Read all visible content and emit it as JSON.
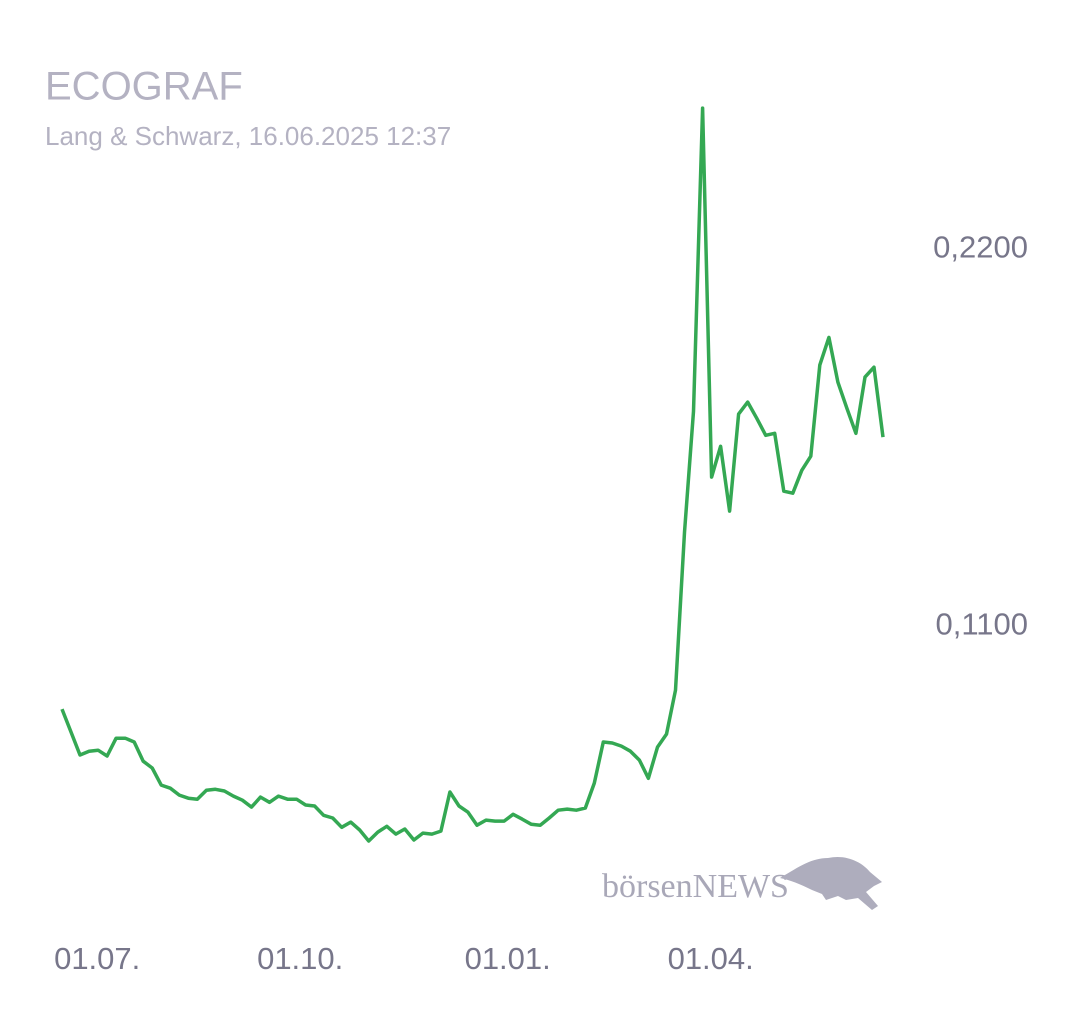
{
  "chart_data": {
    "type": "line",
    "title": "ECOGRAF",
    "subtitle": "Lang & Schwarz, 16.06.2025 12:37",
    "watermark": "börsenNEWS",
    "color": "#34a853",
    "xlim": [
      0,
      91
    ],
    "xticks": [
      {
        "value": 3.9,
        "label": "01.07."
      },
      {
        "value": 26.4,
        "label": "01.10."
      },
      {
        "value": 49.4,
        "label": "01.01."
      },
      {
        "value": 71.9,
        "label": "01.04."
      }
    ],
    "ylim": [
      0.04,
      0.27
    ],
    "yticks": [
      {
        "value": 0.11,
        "label": "0,1100"
      },
      {
        "value": 0.22,
        "label": "0,2200"
      }
    ],
    "values": [
      0.0858,
      0.0791,
      0.0724,
      0.0735,
      0.0738,
      0.0721,
      0.0773,
      0.0773,
      0.0762,
      0.0706,
      0.0686,
      0.0636,
      0.0627,
      0.0607,
      0.0598,
      0.0595,
      0.0621,
      0.0624,
      0.0619,
      0.0604,
      0.0592,
      0.0572,
      0.0601,
      0.0586,
      0.0604,
      0.0595,
      0.0595,
      0.0578,
      0.0575,
      0.0548,
      0.054,
      0.0513,
      0.0528,
      0.0505,
      0.0473,
      0.0499,
      0.0516,
      0.0493,
      0.0508,
      0.0476,
      0.0496,
      0.0493,
      0.0502,
      0.0616,
      0.0575,
      0.0557,
      0.0519,
      0.0534,
      0.0531,
      0.0531,
      0.0551,
      0.0537,
      0.0522,
      0.0519,
      0.054,
      0.0563,
      0.0566,
      0.0563,
      0.0569,
      0.0642,
      0.0762,
      0.0759,
      0.075,
      0.0735,
      0.0709,
      0.0656,
      0.0747,
      0.0785,
      0.0913,
      0.1374,
      0.1727,
      0.2612,
      0.1535,
      0.1625,
      0.1436,
      0.1719,
      0.1754,
      0.1707,
      0.1657,
      0.1663,
      0.1494,
      0.1488,
      0.1555,
      0.1596,
      0.1862,
      0.1943,
      0.1812,
      0.1736,
      0.1663,
      0.1827,
      0.1856,
      0.1652
    ]
  }
}
